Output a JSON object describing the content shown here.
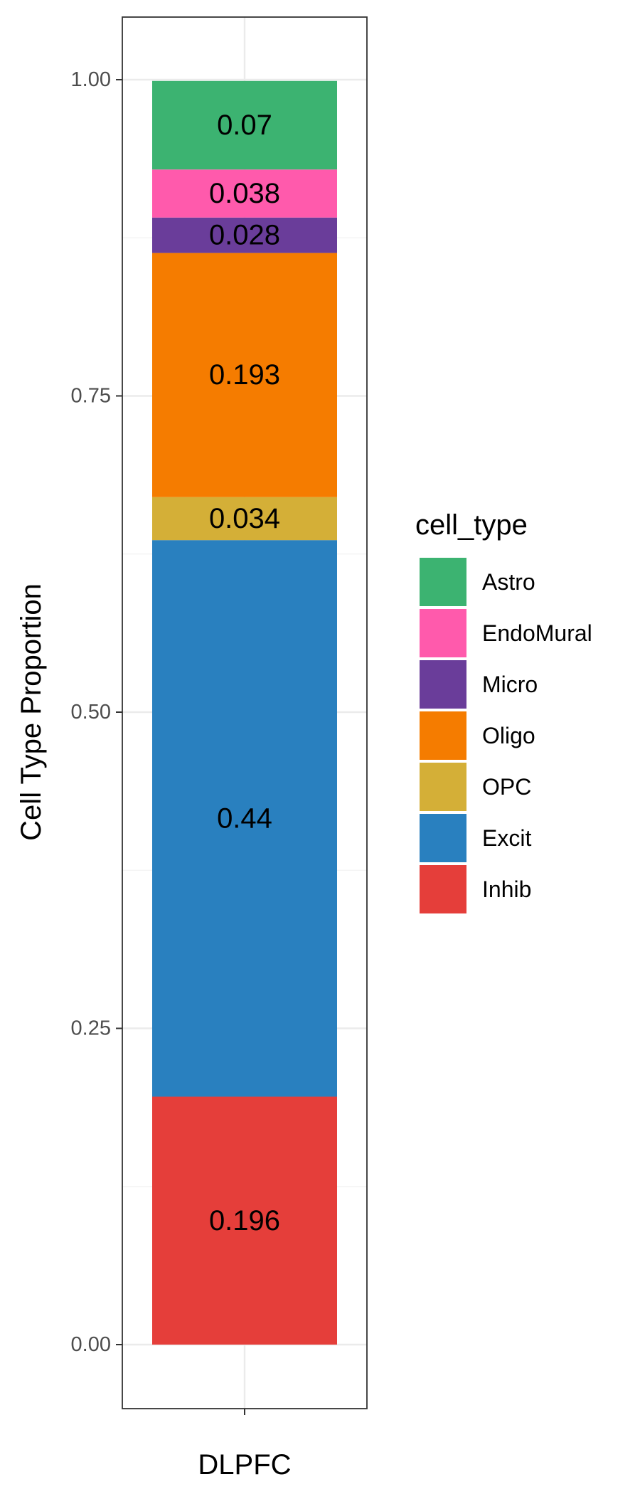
{
  "chart_data": {
    "type": "bar",
    "stacked": true,
    "categories": [
      "DLPFC"
    ],
    "xlabel": "",
    "ylabel": "Cell Type Proportion",
    "ylim": [
      0,
      1
    ],
    "yticks": [
      0.0,
      0.25,
      0.5,
      0.75,
      1.0
    ],
    "ytick_labels": [
      "0.00",
      "0.25",
      "0.50",
      "0.75",
      "1.00"
    ],
    "grid": true,
    "legend": {
      "title": "cell_type",
      "placement": "right"
    },
    "series": [
      {
        "name": "Astro",
        "values": [
          0.07
        ],
        "label": "0.07",
        "color": "#3cb371"
      },
      {
        "name": "EndoMural",
        "values": [
          0.038
        ],
        "label": "0.038",
        "color": "#ff5aac"
      },
      {
        "name": "Micro",
        "values": [
          0.028
        ],
        "label": "0.028",
        "color": "#6a3d9a"
      },
      {
        "name": "Oligo",
        "values": [
          0.193
        ],
        "label": "0.193",
        "color": "#f57c00"
      },
      {
        "name": "OPC",
        "values": [
          0.034
        ],
        "label": "0.034",
        "color": "#d4af37"
      },
      {
        "name": "Excit",
        "values": [
          0.44
        ],
        "label": "0.44",
        "color": "#2980bf"
      },
      {
        "name": "Inhib",
        "values": [
          0.196
        ],
        "label": "0.196",
        "color": "#e53e3a"
      }
    ]
  }
}
